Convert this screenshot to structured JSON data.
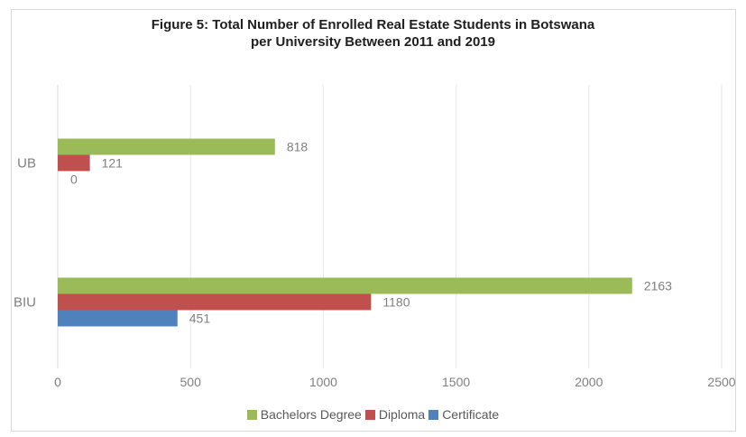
{
  "chart_data": {
    "type": "bar",
    "orientation": "horizontal",
    "title": "Figure 5: Total Number of Enrolled Real Estate Students in Botswana per University Between 2011 and 2019",
    "title_lines": [
      "Figure 5: Total Number of Enrolled Real Estate Students in Botswana",
      "per University Between 2011 and 2019"
    ],
    "categories": [
      "UB",
      "BIU"
    ],
    "series": [
      {
        "name": "Bachelors Degree",
        "values": [
          818,
          2163
        ],
        "color": "#9BBB59"
      },
      {
        "name": "Diploma",
        "values": [
          121,
          1180
        ],
        "color": "#C0504D"
      },
      {
        "name": "Certificate",
        "values": [
          0,
          451
        ],
        "color": "#4F81BD"
      }
    ],
    "xlim": [
      0,
      2500
    ],
    "xticks": [
      0,
      500,
      1000,
      1500,
      2000,
      2500
    ],
    "xlabel": "",
    "ylabel": "",
    "grid": true,
    "legend_position": "bottom"
  }
}
